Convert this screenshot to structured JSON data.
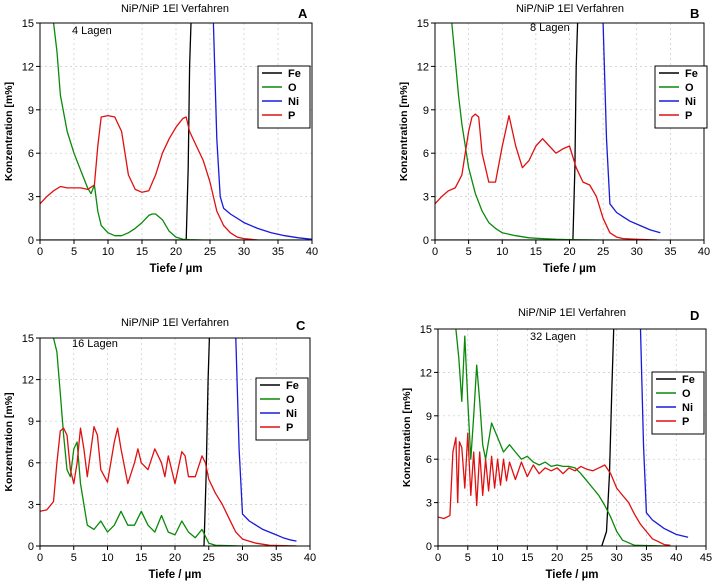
{
  "chart_data": [
    {
      "type": "line",
      "panel_letter": "A",
      "title": "NiP/NiP 1El Verfahren",
      "annotation": "4 Lagen",
      "xlabel": "Tiefe  /  µm",
      "ylabel": "Konzentration [m%]",
      "xlim": [
        0,
        40
      ],
      "ylim": [
        0,
        15
      ],
      "x_ticks": [
        0,
        5,
        10,
        15,
        20,
        25,
        30,
        35,
        40
      ],
      "y_ticks": [
        0,
        3,
        6,
        9,
        12,
        15
      ],
      "grid": true,
      "legend_position": "right",
      "series": [
        {
          "name": "Fe",
          "color": "#000000",
          "x": [
            0,
            21.5,
            21.8,
            22.0,
            22.2
          ],
          "y": [
            0,
            0,
            5,
            12,
            15
          ]
        },
        {
          "name": "O",
          "color": "#0a8a0a",
          "x": [
            2.0,
            2.5,
            3,
            4,
            5,
            6,
            7,
            7.5,
            8,
            8.5,
            9,
            10,
            11,
            12,
            13,
            14,
            15,
            16,
            16.5,
            17,
            18,
            19,
            20,
            21,
            22,
            24,
            26,
            30,
            40
          ],
          "y": [
            15,
            13,
            10,
            7.5,
            6.0,
            4.8,
            3.6,
            3.2,
            3.8,
            2.0,
            1.0,
            0.5,
            0.3,
            0.3,
            0.5,
            0.8,
            1.2,
            1.7,
            1.8,
            1.8,
            1.4,
            0.6,
            0.2,
            0.05,
            0.02,
            0,
            0,
            0,
            0
          ]
        },
        {
          "name": "Ni",
          "color": "#1a1adc",
          "x": [
            25.5,
            26,
            26.5,
            27,
            28,
            30,
            32,
            34,
            36,
            38,
            40
          ],
          "y": [
            15,
            7,
            3,
            2.2,
            1.8,
            1.2,
            0.8,
            0.5,
            0.3,
            0.15,
            0.05
          ]
        },
        {
          "name": "P",
          "color": "#e01010",
          "x": [
            0,
            1,
            2,
            3,
            4,
            5,
            6,
            7,
            8,
            8.5,
            9,
            10,
            11,
            12,
            13,
            14,
            15,
            16,
            17,
            18,
            19,
            20,
            21,
            21.5,
            22,
            23,
            24,
            25,
            26,
            27,
            28,
            29,
            30,
            31,
            32
          ],
          "y": [
            2.5,
            3.0,
            3.4,
            3.7,
            3.6,
            3.6,
            3.6,
            3.5,
            3.8,
            6.5,
            8.5,
            8.6,
            8.5,
            7.5,
            4.5,
            3.5,
            3.3,
            3.4,
            4.5,
            6.0,
            7.0,
            7.8,
            8.4,
            8.5,
            7.5,
            6.5,
            5.5,
            4.0,
            2.0,
            1.0,
            0.5,
            0.2,
            0.1,
            0.05,
            0
          ]
        }
      ]
    },
    {
      "type": "line",
      "panel_letter": "B",
      "title": "NiP/NiP 1El Verfahren",
      "annotation": "8 Lagen",
      "xlabel": "Tiefe  /  µm",
      "ylabel": "Konzentration [m%]",
      "xlim": [
        0,
        40
      ],
      "ylim": [
        0,
        15
      ],
      "x_ticks": [
        0,
        5,
        10,
        15,
        20,
        25,
        30,
        35,
        40
      ],
      "y_ticks": [
        0,
        3,
        6,
        9,
        12,
        15
      ],
      "grid": true,
      "legend_position": "right",
      "series": [
        {
          "name": "Fe",
          "color": "#000000",
          "x": [
            0,
            20.5,
            20.8,
            21.0,
            21.2
          ],
          "y": [
            0,
            0,
            5,
            12,
            15
          ]
        },
        {
          "name": "O",
          "color": "#0a8a0a",
          "x": [
            2.5,
            3,
            3.5,
            4,
            4.5,
            5,
            6,
            7,
            8,
            9,
            10,
            12,
            14,
            16,
            18,
            20,
            25,
            33
          ],
          "y": [
            15,
            12.5,
            10,
            8,
            6.5,
            5.0,
            3.2,
            2.0,
            1.2,
            0.8,
            0.5,
            0.3,
            0.15,
            0.1,
            0.05,
            0.02,
            0,
            0
          ]
        },
        {
          "name": "Ni",
          "color": "#1a1adc",
          "x": [
            25.0,
            25.5,
            26,
            27,
            28,
            29,
            30,
            31,
            32,
            33.5
          ],
          "y": [
            15,
            7,
            2.5,
            1.9,
            1.6,
            1.3,
            1.1,
            0.9,
            0.7,
            0.5
          ]
        },
        {
          "name": "P",
          "color": "#e01010",
          "x": [
            0,
            1,
            2,
            3,
            4,
            5,
            5.5,
            6,
            6.5,
            7,
            8,
            9,
            10,
            11,
            12,
            13,
            14,
            15,
            16,
            17,
            18,
            19,
            20,
            21,
            22,
            23,
            24,
            25,
            26,
            27,
            28,
            30,
            33
          ],
          "y": [
            2.5,
            3.0,
            3.4,
            3.6,
            4.5,
            7.5,
            8.5,
            8.7,
            8.5,
            6.0,
            4.0,
            4.0,
            6.5,
            8.6,
            6.5,
            5.0,
            5.5,
            6.5,
            7.0,
            6.5,
            6.0,
            6.3,
            6.5,
            5.0,
            4.0,
            3.8,
            3.0,
            1.5,
            0.5,
            0.2,
            0.1,
            0.05,
            0
          ]
        }
      ]
    },
    {
      "type": "line",
      "panel_letter": "C",
      "title": "NiP/NiP 1El Verfahren",
      "annotation": "16 Lagen",
      "xlabel": "Tiefe  /  µm",
      "ylabel": "Konzentration [m%]",
      "xlim": [
        0,
        40
      ],
      "ylim": [
        0,
        15
      ],
      "x_ticks": [
        0,
        5,
        10,
        15,
        20,
        25,
        30,
        35,
        40
      ],
      "y_ticks": [
        0,
        3,
        6,
        9,
        12,
        15
      ],
      "grid": true,
      "legend_position": "right",
      "series": [
        {
          "name": "Fe",
          "color": "#000000",
          "x": [
            0,
            24.3,
            24.6,
            24.9,
            25.1
          ],
          "y": [
            0,
            0,
            5,
            12,
            15
          ]
        },
        {
          "name": "O",
          "color": "#0a8a0a",
          "x": [
            2.0,
            2.5,
            3,
            3.5,
            4,
            4.5,
            5,
            5.5,
            6,
            7,
            8,
            9,
            10,
            11,
            12,
            13,
            14,
            15,
            16,
            17,
            18,
            19,
            20,
            21,
            22,
            23,
            24,
            25,
            26,
            30,
            38
          ],
          "y": [
            15,
            14,
            11,
            8.0,
            5.5,
            5.0,
            7.0,
            7.5,
            4.5,
            1.5,
            1.2,
            1.8,
            1.0,
            1.5,
            2.5,
            1.5,
            1.5,
            2.5,
            1.5,
            1.0,
            2.2,
            1.0,
            0.8,
            1.8,
            1.0,
            0.6,
            1.2,
            0.2,
            0.05,
            0,
            0
          ]
        },
        {
          "name": "Ni",
          "color": "#1a1adc",
          "x": [
            29.0,
            29.5,
            30,
            31,
            32,
            33,
            34,
            35,
            36,
            37,
            38
          ],
          "y": [
            15,
            7,
            2.3,
            1.8,
            1.5,
            1.2,
            1.0,
            0.8,
            0.6,
            0.45,
            0.35
          ]
        },
        {
          "name": "P",
          "color": "#e01010",
          "x": [
            0,
            1,
            2,
            2.5,
            3,
            3.5,
            4,
            4.5,
            5,
            5.5,
            6,
            6.5,
            7,
            8,
            8.5,
            9,
            10,
            11,
            11.5,
            12,
            13,
            14,
            14.5,
            15,
            16,
            17,
            18,
            18.5,
            19,
            20,
            21,
            21.5,
            22,
            23,
            24,
            24.5,
            25,
            26,
            27,
            28,
            29,
            30,
            32,
            34,
            38
          ],
          "y": [
            2.5,
            2.6,
            3.2,
            6.0,
            8.3,
            8.5,
            8.0,
            5.5,
            4.5,
            6.0,
            8.5,
            7.0,
            5.0,
            8.6,
            8.0,
            5.5,
            4.6,
            7.5,
            8.5,
            7.0,
            4.5,
            6.0,
            7.0,
            6.0,
            5.5,
            7.0,
            6.0,
            5.0,
            6.5,
            4.5,
            6.8,
            6.5,
            5.0,
            5.0,
            6.5,
            6.0,
            4.8,
            3.8,
            3.0,
            2.0,
            1.0,
            0.5,
            0.2,
            0.05,
            0
          ]
        }
      ]
    },
    {
      "type": "line",
      "panel_letter": "D",
      "title": "NiP/NiP 1El Verfahren",
      "annotation": "32 Lagen",
      "xlabel": "Tiefe  /  µm",
      "ylabel": "Konzentration [m%]",
      "xlim": [
        0,
        45
      ],
      "ylim": [
        0,
        15
      ],
      "x_ticks": [
        0,
        5,
        10,
        15,
        20,
        25,
        30,
        35,
        40,
        45
      ],
      "y_ticks": [
        0,
        3,
        6,
        9,
        12,
        15
      ],
      "grid": true,
      "legend_position": "right",
      "series": [
        {
          "name": "Fe",
          "color": "#000000",
          "x": [
            0,
            27.5,
            28.3,
            28.8,
            29.2,
            29.5
          ],
          "y": [
            0,
            0,
            1.0,
            5.0,
            11.0,
            15
          ]
        },
        {
          "name": "O",
          "color": "#0a8a0a",
          "x": [
            3.0,
            3.5,
            4,
            4.5,
            5,
            5.5,
            6,
            6.5,
            7,
            7.5,
            8,
            9,
            10,
            11,
            12,
            13,
            14,
            15,
            16,
            17,
            18,
            19,
            20,
            21,
            22,
            23,
            24,
            25,
            26,
            27,
            28,
            29,
            30,
            31,
            33,
            38
          ],
          "y": [
            15,
            13,
            10,
            14.5,
            10,
            6,
            9,
            12.5,
            10,
            7,
            6,
            8.5,
            7.5,
            6.5,
            7.0,
            6.5,
            6.0,
            6.2,
            5.8,
            5.6,
            5.8,
            5.5,
            5.6,
            5.5,
            5.5,
            5.4,
            5.0,
            4.5,
            4.0,
            3.5,
            2.8,
            2.0,
            1.0,
            0.4,
            0.05,
            0
          ]
        },
        {
          "name": "Ni",
          "color": "#1a1adc",
          "x": [
            34.0,
            34.5,
            35,
            36,
            37,
            38,
            39,
            40,
            41,
            42
          ],
          "y": [
            15,
            7,
            2.3,
            1.8,
            1.5,
            1.2,
            1.0,
            0.8,
            0.7,
            0.6
          ]
        },
        {
          "name": "P",
          "color": "#e01010",
          "x": [
            0,
            1,
            2,
            2.5,
            3,
            3.3,
            3.6,
            4,
            4.5,
            5,
            5.5,
            6,
            6.5,
            7,
            7.5,
            8,
            8.5,
            9,
            9.5,
            10,
            10.5,
            11,
            11.5,
            12,
            13,
            14,
            15,
            16,
            17,
            18,
            19,
            20,
            21,
            22,
            23,
            24,
            25,
            26,
            27,
            28,
            29,
            30,
            31,
            32,
            33,
            34,
            35,
            36,
            37,
            38,
            39
          ],
          "y": [
            2.0,
            1.9,
            2.1,
            6.5,
            7.5,
            3.0,
            7.2,
            6.8,
            4.0,
            7.8,
            3.5,
            6.5,
            2.8,
            6.5,
            3.5,
            6.0,
            3.8,
            6.2,
            4.0,
            6.0,
            4.2,
            6.0,
            4.5,
            5.8,
            4.6,
            5.8,
            4.8,
            5.6,
            5.0,
            5.4,
            5.2,
            5.4,
            5.0,
            5.4,
            5.2,
            5.5,
            5.3,
            5.2,
            5.4,
            5.6,
            5.0,
            4.0,
            3.5,
            3.0,
            2.2,
            1.5,
            1.0,
            0.5,
            0.3,
            0.1,
            0.05
          ]
        }
      ]
    }
  ]
}
